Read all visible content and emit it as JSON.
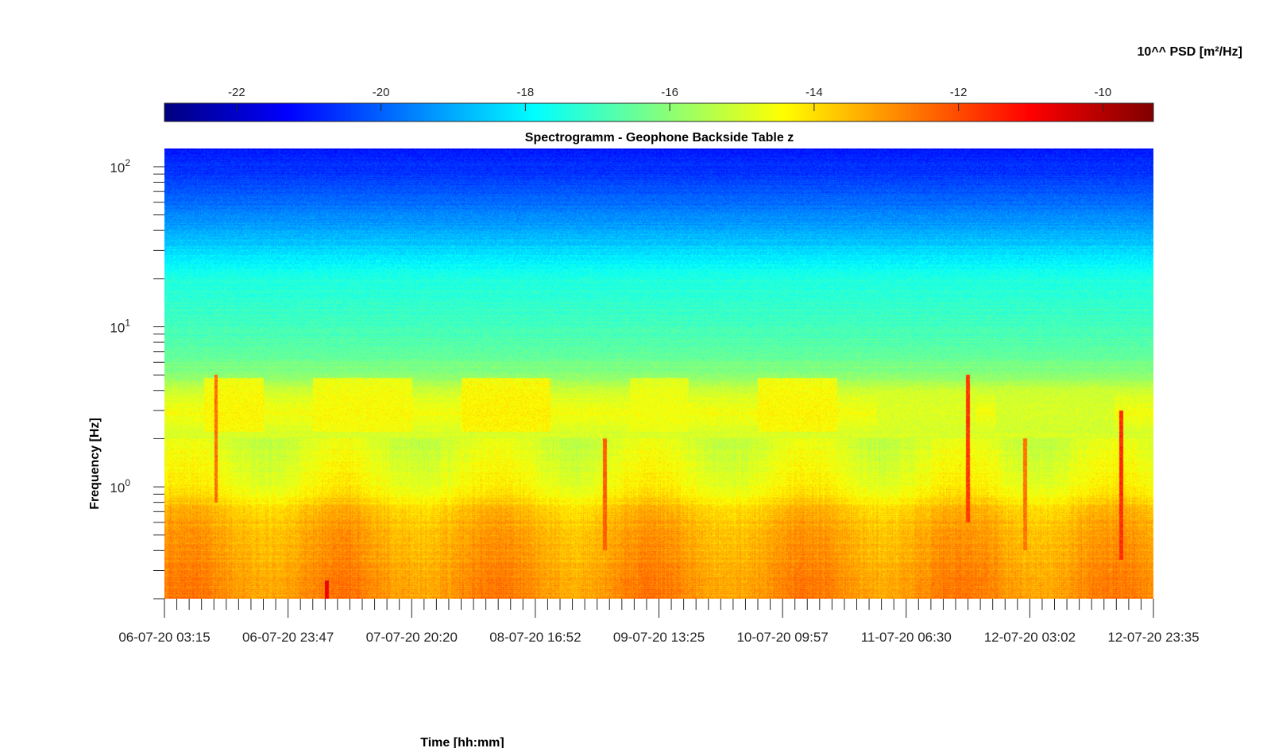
{
  "chart_data": {
    "type": "heatmap",
    "title": "Spectrogramm - Geophone Backside Table z",
    "xlabel": "Time [hh:mm]",
    "ylabel": "Frequency [Hz]",
    "x_tick_labels": [
      "06-07-20 03:15",
      "06-07-20 23:47",
      "07-07-20 20:20",
      "08-07-20 16:52",
      "09-07-20 13:25",
      "10-07-20 09:57",
      "11-07-20 06:30",
      "12-07-20 03:02",
      "12-07-20 23:35"
    ],
    "y_scale": "log",
    "ylim": [
      0.2,
      130
    ],
    "y_major_ticks": [
      {
        "value": 1,
        "base": "10",
        "exp": "0"
      },
      {
        "value": 10,
        "base": "10",
        "exp": "1"
      },
      {
        "value": 100,
        "base": "10",
        "exp": "2"
      }
    ],
    "colorbar": {
      "label": "10^^ PSD [m²/Hz]",
      "range": [
        -23.0,
        -9.3
      ],
      "ticks": [
        -22,
        -20,
        -18,
        -16,
        -14,
        -12,
        -10
      ],
      "tick_labels": [
        "-22",
        "-20",
        "-18",
        "-16",
        "-14",
        "-12",
        "-10"
      ],
      "colormap": "jet",
      "colors": [
        "#00007f",
        "#0000ff",
        "#0080ff",
        "#00ffff",
        "#80ff80",
        "#ffff00",
        "#ff8000",
        "#ff0000",
        "#7f0000"
      ]
    },
    "psd_profile": [
      {
        "freq": 0.2,
        "value": -12.9
      },
      {
        "freq": 0.3,
        "value": -13.1
      },
      {
        "freq": 0.5,
        "value": -13.3
      },
      {
        "freq": 0.7,
        "value": -13.6
      },
      {
        "freq": 0.8,
        "value": -14.0
      },
      {
        "freq": 1.0,
        "value": -14.5
      },
      {
        "freq": 1.5,
        "value": -14.8
      },
      {
        "freq": 2.0,
        "value": -15.0
      },
      {
        "freq": 3.0,
        "value": -14.6
      },
      {
        "freq": 4.0,
        "value": -15.1
      },
      {
        "freq": 5.0,
        "value": -16.0
      },
      {
        "freq": 7.0,
        "value": -16.6
      },
      {
        "freq": 10.0,
        "value": -17.0
      },
      {
        "freq": 20.0,
        "value": -17.4
      },
      {
        "freq": 30.0,
        "value": -18.4
      },
      {
        "freq": 50.0,
        "value": -19.5
      },
      {
        "freq": 80.0,
        "value": -20.4
      },
      {
        "freq": 130.0,
        "value": -21.0
      }
    ],
    "daily_activity_bands": [
      {
        "time_frac": [
          0.04,
          0.1
        ],
        "freq_range": [
          2.2,
          4.8
        ],
        "value": -14.3
      },
      {
        "time_frac": [
          0.15,
          0.25
        ],
        "freq_range": [
          2.2,
          4.8
        ],
        "value": -14.4
      },
      {
        "time_frac": [
          0.3,
          0.39
        ],
        "freq_range": [
          2.2,
          4.8
        ],
        "value": -14.2
      },
      {
        "time_frac": [
          0.47,
          0.53
        ],
        "freq_range": [
          2.2,
          4.8
        ],
        "value": -14.6
      },
      {
        "time_frac": [
          0.6,
          0.68
        ],
        "freq_range": [
          2.2,
          4.8
        ],
        "value": -14.3
      },
      {
        "time_frac": [
          0.72,
          0.82
        ],
        "freq_range": [
          2.2,
          4.0
        ],
        "value": -15.0
      },
      {
        "time_frac": [
          0.84,
          0.96
        ],
        "freq_range": [
          2.2,
          4.0
        ],
        "value": -15.1
      }
    ],
    "transient_events": [
      {
        "time_frac": 0.052,
        "freq_range": [
          0.8,
          5.0
        ],
        "value": -12.5
      },
      {
        "time_frac": 0.164,
        "freq_range": [
          0.2,
          0.26
        ],
        "value": -10.8
      },
      {
        "time_frac": 0.445,
        "freq_range": [
          0.4,
          2.0
        ],
        "value": -12.3
      },
      {
        "time_frac": 0.812,
        "freq_range": [
          0.6,
          5.0
        ],
        "value": -11.8
      },
      {
        "time_frac": 0.87,
        "freq_range": [
          0.4,
          2.0
        ],
        "value": -12.6
      },
      {
        "time_frac": 0.967,
        "freq_range": [
          0.35,
          3.0
        ],
        "value": -11.6
      }
    ]
  }
}
